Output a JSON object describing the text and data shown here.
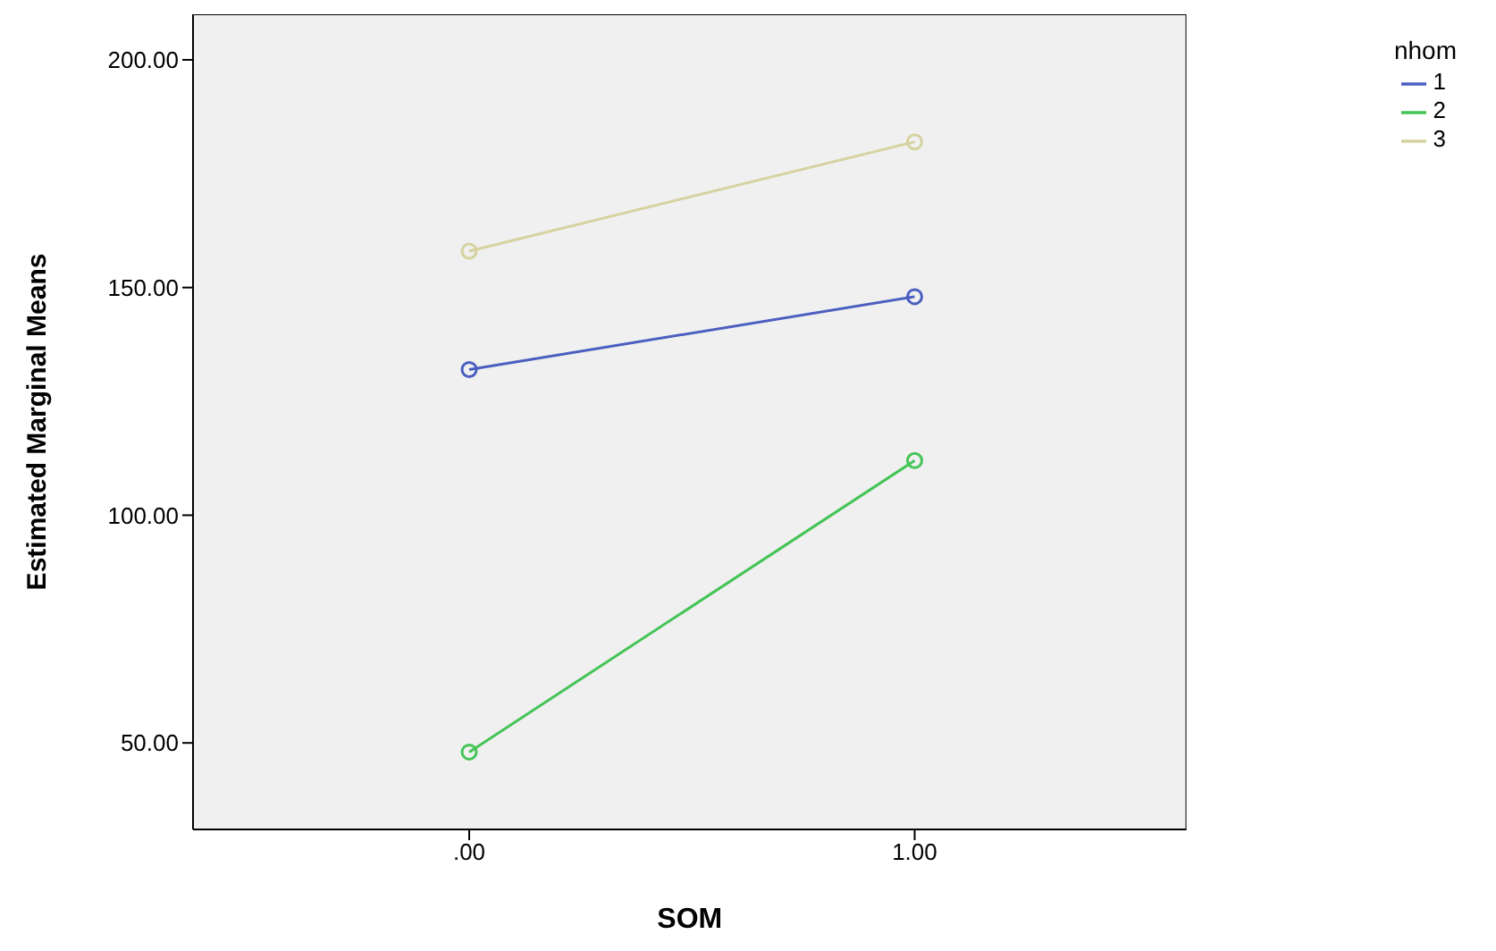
{
  "chart_data": {
    "type": "line",
    "xlabel": "SOM",
    "ylabel": "Estimated Marginal Means",
    "legend_title": "nhom",
    "x": [
      0,
      1
    ],
    "series": [
      {
        "name": "1",
        "color": "#4a5fc0",
        "values": [
          132,
          148
        ]
      },
      {
        "name": "2",
        "color": "#44c456",
        "values": [
          48,
          112
        ]
      },
      {
        "name": "3",
        "color": "#d6d2a0",
        "values": [
          158,
          182
        ]
      }
    ],
    "xlim": [
      -0.62,
      1.61
    ],
    "xticks": [
      {
        "value": 0,
        "label": ".00"
      },
      {
        "value": 1,
        "label": "1.00"
      }
    ],
    "ylim": [
      31,
      210
    ],
    "yticks": [
      {
        "value": 50,
        "label": "50.00"
      },
      {
        "value": 100,
        "label": "100.00"
      },
      {
        "value": 150,
        "label": "150.00"
      },
      {
        "value": 200,
        "label": "200.00"
      }
    ],
    "grid": false,
    "legend": "top right",
    "marker": "circle",
    "line_style": "solid"
  }
}
